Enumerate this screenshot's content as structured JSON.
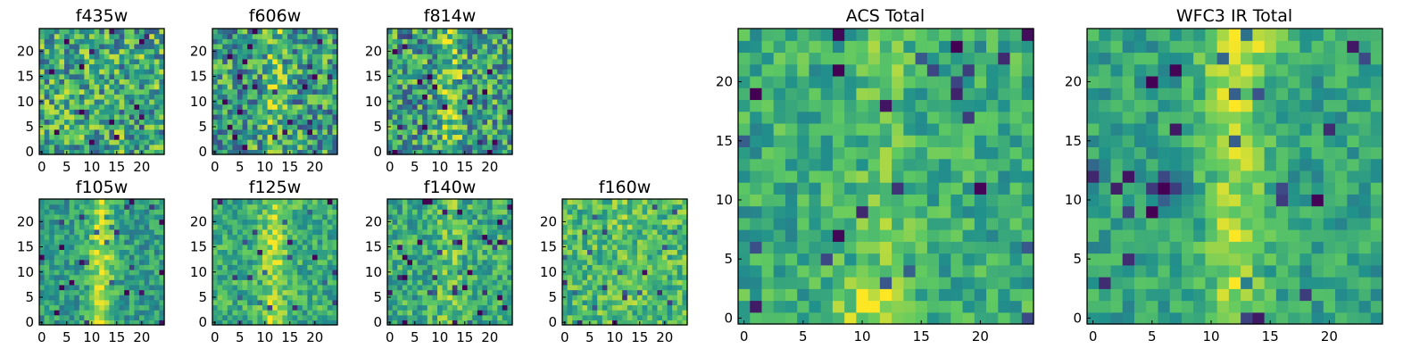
{
  "chart_data": {
    "type": "heatmap",
    "colormap": "viridis",
    "colormap_stops": [
      "#440154",
      "#3b528b",
      "#21918c",
      "#5ec962",
      "#fde725"
    ],
    "grid": false,
    "panels": [
      {
        "id": "f435w",
        "title": "f435w",
        "xlim": [
          0,
          24
        ],
        "ylim": [
          0,
          24
        ],
        "xticks": [
          0,
          5,
          10,
          15,
          20
        ],
        "yticks": [
          0,
          5,
          10,
          15,
          20
        ],
        "pattern": "noise"
      },
      {
        "id": "f606w",
        "title": "f606w",
        "xlim": [
          0,
          24
        ],
        "ylim": [
          0,
          24
        ],
        "xticks": [
          0,
          5,
          10,
          15,
          20
        ],
        "yticks": [
          0,
          5,
          10,
          15,
          20
        ],
        "pattern": "faint vertical ridge near x=12"
      },
      {
        "id": "f814w",
        "title": "f814w",
        "xlim": [
          0,
          24
        ],
        "ylim": [
          0,
          24
        ],
        "xticks": [
          0,
          5,
          10,
          15,
          20
        ],
        "yticks": [
          0,
          5,
          10,
          15,
          20
        ],
        "pattern": "faint vertical ridge near x=12"
      },
      {
        "id": "f105w",
        "title": "f105w",
        "xlim": [
          0,
          24
        ],
        "ylim": [
          0,
          24
        ],
        "xticks": [
          0,
          5,
          10,
          15,
          20
        ],
        "yticks": [
          0,
          5,
          10,
          15,
          20
        ],
        "pattern": "vertical ridge near x=12"
      },
      {
        "id": "f125w",
        "title": "f125w",
        "xlim": [
          0,
          24
        ],
        "ylim": [
          0,
          24
        ],
        "xticks": [
          0,
          5,
          10,
          15,
          20
        ],
        "yticks": [
          0,
          5,
          10,
          15,
          20
        ],
        "pattern": "vertical ridge near x=12"
      },
      {
        "id": "f140w",
        "title": "f140w",
        "xlim": [
          0,
          24
        ],
        "ylim": [
          0,
          24
        ],
        "xticks": [
          0,
          5,
          10,
          15,
          20
        ],
        "yticks": [
          0,
          5,
          10,
          15,
          20
        ],
        "pattern": "diffuse ridge"
      },
      {
        "id": "f160w",
        "title": "f160w",
        "xlim": [
          0,
          24
        ],
        "ylim": [
          0,
          24
        ],
        "xticks": [
          0,
          5,
          10,
          15,
          20
        ],
        "yticks": [
          0,
          5,
          10,
          15,
          20
        ],
        "pattern": "diffuse bright"
      },
      {
        "id": "acs_total",
        "title": "ACS Total",
        "xlim": [
          0,
          24
        ],
        "ylim": [
          0,
          24
        ],
        "xticks": [
          0,
          5,
          10,
          15,
          20
        ],
        "yticks": [
          0,
          5,
          10,
          15,
          20
        ],
        "pattern": "bright near bottom center"
      },
      {
        "id": "wfc3_total",
        "title": "WFC3 IR Total",
        "xlim": [
          0,
          24
        ],
        "ylim": [
          0,
          24
        ],
        "xticks": [
          0,
          5,
          10,
          15,
          20
        ],
        "yticks": [
          0,
          5,
          10,
          15,
          20
        ],
        "pattern": "vertical ridge near x=12, dark spot near (6,11)"
      }
    ]
  }
}
